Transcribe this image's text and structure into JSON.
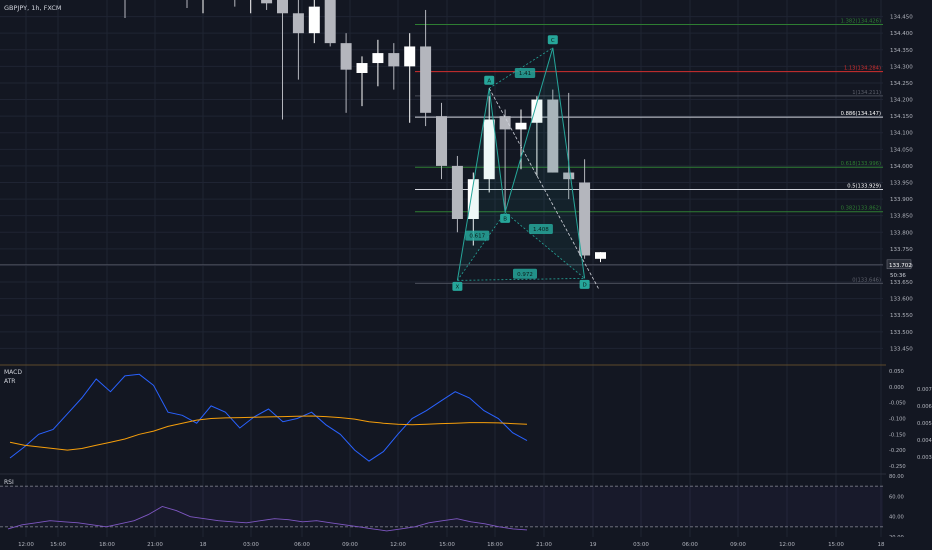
{
  "header": {
    "symbol_line": "GBPJPY, 1h, FXCM"
  },
  "colors": {
    "background": "#131722",
    "grid": "#1f2433",
    "bull": "#ffffff",
    "bear": "#b4b6bd",
    "pattern": "#26a69a",
    "macd": "#2962ff",
    "signal": "#f59e0b",
    "rsi": "#7e57c2",
    "fib_green": "#2e7d32",
    "fib_red": "#d32f2f",
    "fib_white": "#d1d4dc",
    "axis_text": "#b2b5be"
  },
  "chart_data": [
    {
      "type": "candlestick",
      "title": "GBPJPY, 1h, FXCM",
      "ylim": [
        133.4,
        134.5
      ],
      "price_ticks": [
        134.45,
        134.4,
        134.35,
        134.3,
        134.25,
        134.2,
        134.15,
        134.1,
        134.05,
        134.0,
        133.95,
        133.9,
        133.85,
        133.8,
        133.75,
        133.7,
        133.65,
        133.6,
        133.55,
        133.5,
        133.45
      ],
      "time_labels": [
        "12:00",
        "15:00",
        "18:00",
        "21:00",
        "18",
        "03:00",
        "06:00",
        "09:00",
        "12:00",
        "15:00",
        "18:00",
        "21:00",
        "19",
        "03:00",
        "06:00",
        "09:00",
        "12:00",
        "15:00",
        "18"
      ],
      "candles": [
        {
          "i": 0,
          "o": 134.52,
          "h": 134.55,
          "l": 134.46,
          "c": 134.54
        },
        {
          "i": 1,
          "o": 134.53,
          "h": 134.56,
          "l": 134.5,
          "c": 134.55
        },
        {
          "i": 2,
          "o": 134.55,
          "h": 134.57,
          "l": 134.48,
          "c": 134.5
        },
        {
          "i": 3,
          "o": 134.5,
          "h": 134.53,
          "l": 134.46,
          "c": 134.52
        },
        {
          "i": 4,
          "o": 134.52,
          "h": 134.55,
          "l": 134.47,
          "c": 134.49
        },
        {
          "i": 5,
          "o": 134.5,
          "h": 134.54,
          "l": 134.14,
          "c": 134.46
        },
        {
          "i": 6,
          "o": 134.46,
          "h": 134.5,
          "l": 134.26,
          "c": 134.4
        },
        {
          "i": 7,
          "o": 134.4,
          "h": 134.5,
          "l": 134.37,
          "c": 134.48
        },
        {
          "i": 8,
          "o": 134.5,
          "h": 134.52,
          "l": 134.36,
          "c": 134.37
        },
        {
          "i": 9,
          "o": 134.37,
          "h": 134.4,
          "l": 134.16,
          "c": 134.29
        },
        {
          "i": 10,
          "o": 134.28,
          "h": 134.33,
          "l": 134.18,
          "c": 134.31
        },
        {
          "i": 11,
          "o": 134.31,
          "h": 134.38,
          "l": 134.24,
          "c": 134.34
        },
        {
          "i": 12,
          "o": 134.34,
          "h": 134.37,
          "l": 134.23,
          "c": 134.3
        },
        {
          "i": 13,
          "o": 134.3,
          "h": 134.4,
          "l": 134.13,
          "c": 134.36
        },
        {
          "i": 14,
          "o": 134.36,
          "h": 134.47,
          "l": 134.12,
          "c": 134.16
        },
        {
          "i": 15,
          "o": 134.15,
          "h": 134.19,
          "l": 133.96,
          "c": 134.0
        },
        {
          "i": 16,
          "o": 134.0,
          "h": 134.03,
          "l": 133.8,
          "c": 133.84
        },
        {
          "i": 17,
          "o": 133.84,
          "h": 133.98,
          "l": 133.76,
          "c": 133.96
        },
        {
          "i": 18,
          "o": 133.96,
          "h": 134.21,
          "l": 133.92,
          "c": 134.14
        },
        {
          "i": 19,
          "o": 134.15,
          "h": 134.17,
          "l": 133.86,
          "c": 134.11
        },
        {
          "i": 20,
          "o": 134.11,
          "h": 134.17,
          "l": 133.99,
          "c": 134.13
        },
        {
          "i": 21,
          "o": 134.13,
          "h": 134.21,
          "l": 133.97,
          "c": 134.2
        },
        {
          "i": 22,
          "o": 134.2,
          "h": 134.23,
          "l": 133.98,
          "c": 133.98
        },
        {
          "i": 23,
          "o": 133.98,
          "h": 134.22,
          "l": 133.9,
          "c": 133.96
        },
        {
          "i": 24,
          "o": 133.95,
          "h": 134.02,
          "l": 133.72,
          "c": 133.73
        },
        {
          "i": 25,
          "o": 133.72,
          "h": 133.74,
          "l": 133.71,
          "c": 133.74
        }
      ],
      "pattern": {
        "points": [
          {
            "label": "X",
            "i": 16,
            "price": 133.655
          },
          {
            "label": "A",
            "i": 18,
            "price": 134.234
          },
          {
            "label": "B",
            "i": 19,
            "price": 133.86
          },
          {
            "label": "C",
            "i": 22,
            "price": 134.356
          },
          {
            "label": "D",
            "i": 24,
            "price": 133.661
          }
        ],
        "ratios": [
          {
            "text": "0.617",
            "i": 17,
            "price": 133.79
          },
          {
            "text": "1.41",
            "i": 20,
            "price": 134.28
          },
          {
            "text": "1.408",
            "i": 21,
            "price": 133.81
          },
          {
            "text": "0.972",
            "i": 20,
            "price": 133.675
          }
        ]
      },
      "fib_levels": [
        {
          "label": "1.382(134.426)",
          "price": 134.426,
          "color": "green"
        },
        {
          "label": "1.13(134.284)",
          "price": 134.284,
          "color": "red"
        },
        {
          "label": "1(134.211)",
          "price": 134.211,
          "color": "dim"
        },
        {
          "label": "0.886(134.147)",
          "price": 134.147,
          "color": "white"
        },
        {
          "label": "0.618(133.996)",
          "price": 133.996,
          "color": "green"
        },
        {
          "label": "0.5(133.929)",
          "price": 133.929,
          "color": "white"
        },
        {
          "label": "0.382(133.862)",
          "price": 133.862,
          "color": "green"
        },
        {
          "label": "0(133.646)",
          "price": 133.646,
          "color": "dim"
        }
      ],
      "current_price": {
        "value": "133.702",
        "countdown": "50:36"
      }
    },
    {
      "type": "line",
      "title": "MACD",
      "secondary_title": "ATR",
      "ylim": [
        -0.26,
        0.06
      ],
      "left_ticks": [
        0.05,
        0.0,
        -0.05,
        -0.1,
        -0.15,
        -0.2,
        -0.25
      ],
      "left_tick_labels": [
        "0.050",
        "0.000",
        "-0.050",
        "-0.100",
        "-0.150",
        "-0.200",
        "-0.250"
      ],
      "atr_ticks": [
        "0.007",
        "0.006",
        "0.005",
        "0.004",
        "0.003"
      ],
      "series": [
        {
          "values": [
            -0.225,
            -0.19,
            -0.15,
            -0.135,
            -0.085,
            -0.035,
            0.025,
            -0.015,
            0.035,
            0.04,
            0.005,
            -0.08,
            -0.09,
            -0.115,
            -0.06,
            -0.08,
            -0.13,
            -0.095,
            -0.07,
            -0.11,
            -0.1,
            -0.08,
            -0.12,
            -0.15,
            -0.2,
            -0.235,
            -0.205,
            -0.15,
            -0.1,
            -0.075,
            -0.045,
            -0.015,
            -0.035,
            -0.075,
            -0.1,
            -0.145,
            -0.17
          ]
        },
        {
          "values": [
            -0.175,
            -0.185,
            -0.19,
            -0.195,
            -0.2,
            -0.195,
            -0.185,
            -0.175,
            -0.165,
            -0.15,
            -0.14,
            -0.125,
            -0.115,
            -0.105,
            -0.1,
            -0.098,
            -0.097,
            -0.096,
            -0.095,
            -0.094,
            -0.093,
            -0.092,
            -0.094,
            -0.097,
            -0.102,
            -0.11,
            -0.115,
            -0.118,
            -0.12,
            -0.118,
            -0.116,
            -0.115,
            -0.113,
            -0.113,
            -0.114,
            -0.116,
            -0.118
          ]
        }
      ]
    },
    {
      "type": "line",
      "title": "RSI",
      "ylim": [
        20,
        80
      ],
      "ticks": [
        "80.00",
        "60.00",
        "40.00",
        "20.00"
      ],
      "levels": [
        70,
        30
      ],
      "series": [
        {
          "values": [
            28,
            32,
            34,
            36,
            35,
            34,
            32,
            30,
            33,
            36,
            42,
            50,
            46,
            40,
            38,
            36,
            35,
            34,
            36,
            38,
            37,
            35,
            36,
            34,
            32,
            30,
            28,
            26,
            28,
            30,
            34,
            36,
            38,
            35,
            33,
            30,
            28,
            27
          ]
        }
      ]
    }
  ]
}
